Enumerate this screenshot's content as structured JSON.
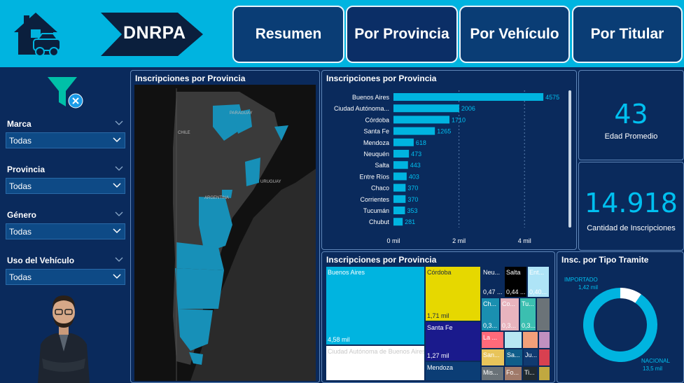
{
  "header": {
    "brand": "DNRPA",
    "nav": [
      {
        "label": "Resumen"
      },
      {
        "label": "Por Provincia"
      },
      {
        "label": "Por Vehículo"
      },
      {
        "label": "Por Titular"
      }
    ]
  },
  "filters": [
    {
      "label": "Marca",
      "value": "Todas"
    },
    {
      "label": "Provincia",
      "value": "Todas"
    },
    {
      "label": "Género",
      "value": "Todas"
    },
    {
      "label": "Uso del Vehículo",
      "value": "Todas"
    }
  ],
  "map": {
    "title": "Inscripciones por Provincia",
    "labels": {
      "paraguay": "PARAGUAY",
      "chile": "CHILE",
      "uruguay": "URUGUAY",
      "argentina": "ARGENTINA"
    }
  },
  "kpis": {
    "edad": {
      "value": "43",
      "label": "Edad Promedio"
    },
    "cantidad": {
      "value": "14.918",
      "label": "Cantidad de Inscripciones"
    }
  },
  "colors": {
    "accent": "#00b4e0",
    "bar": "#00b4e0",
    "bg": "#0a2a5c",
    "header": "#00b4e0"
  },
  "chart_data": [
    {
      "type": "bar",
      "orientation": "horizontal",
      "title": "Inscripciones por Provincia",
      "categories": [
        "Buenos Aires",
        "Ciudad Autónoma...",
        "Córdoba",
        "Santa Fe",
        "Mendoza",
        "Neuquén",
        "Salta",
        "Entre Ríos",
        "Chaco",
        "Corrientes",
        "Tucumán",
        "Chubut"
      ],
      "values": [
        4575,
        2006,
        1710,
        1265,
        618,
        473,
        443,
        403,
        370,
        370,
        353,
        281
      ],
      "xticks": [
        "0 mil",
        "2 mil",
        "4 mil"
      ],
      "xlim": [
        0,
        5000
      ],
      "grid": true
    },
    {
      "type": "treemap",
      "title": "Inscripciones por Provincia",
      "cells": [
        {
          "name": "Buenos Aires",
          "label": "4,58 mil",
          "color": "#00b4e0"
        },
        {
          "name": "Ciudad Autónoma de Buenos Aires",
          "label": "",
          "color": "#ffffff"
        },
        {
          "name": "Córdoba",
          "label": "1,71 mil",
          "color": "#e6d800"
        },
        {
          "name": "Santa Fe",
          "label": "1,27 mil",
          "color": "#1a1a8c"
        },
        {
          "name": "Mendoza",
          "label": "",
          "color": "#0b3d75"
        },
        {
          "name": "Neu...",
          "label": "0,47 ...",
          "color": "#0a2a5c"
        },
        {
          "name": "Salta",
          "label": "0,44 ...",
          "color": "#000000"
        },
        {
          "name": "Ent...",
          "label": "0,40...",
          "color": "#aee4f7"
        },
        {
          "name": "Ch...",
          "label": "0,3...",
          "color": "#1a8fb0"
        },
        {
          "name": "Co...",
          "label": "0,3...",
          "color": "#e8b4be"
        },
        {
          "name": "Tu...",
          "label": "0,3...",
          "color": "#3bbfb0"
        },
        {
          "name": "",
          "label": "",
          "color": "#6b7378"
        },
        {
          "name": "La ...",
          "label": "",
          "color": "#ff6a7a"
        },
        {
          "name": "",
          "label": "",
          "color": "#b7e6f2"
        },
        {
          "name": "",
          "label": "",
          "color": "#f3a07a"
        },
        {
          "name": "",
          "label": "",
          "color": "#c090c0"
        },
        {
          "name": "San...",
          "label": "",
          "color": "#e8c45a"
        },
        {
          "name": "Sa...",
          "label": "",
          "color": "#0f5e8a"
        },
        {
          "name": "Ju...",
          "label": "",
          "color": "#103a70"
        },
        {
          "name": "",
          "label": "",
          "color": "#d84050"
        },
        {
          "name": "Mis...",
          "label": "",
          "color": "#6a7278"
        },
        {
          "name": "Fo...",
          "label": "",
          "color": "#a07a6a"
        },
        {
          "name": "Ti...",
          "label": "",
          "color": "#202a30"
        },
        {
          "name": "",
          "label": "",
          "color": "#c0a840"
        }
      ]
    },
    {
      "type": "pie",
      "donut": true,
      "title": "Insc. por Tipo Tramite",
      "slices": [
        {
          "name": "NACIONAL",
          "value": 13.5,
          "label": "13,5 mil",
          "color": "#00b4e0"
        },
        {
          "name": "IMPORTADO",
          "value": 1.42,
          "label": "1,42 mil",
          "color": "#ffffff"
        }
      ]
    }
  ]
}
